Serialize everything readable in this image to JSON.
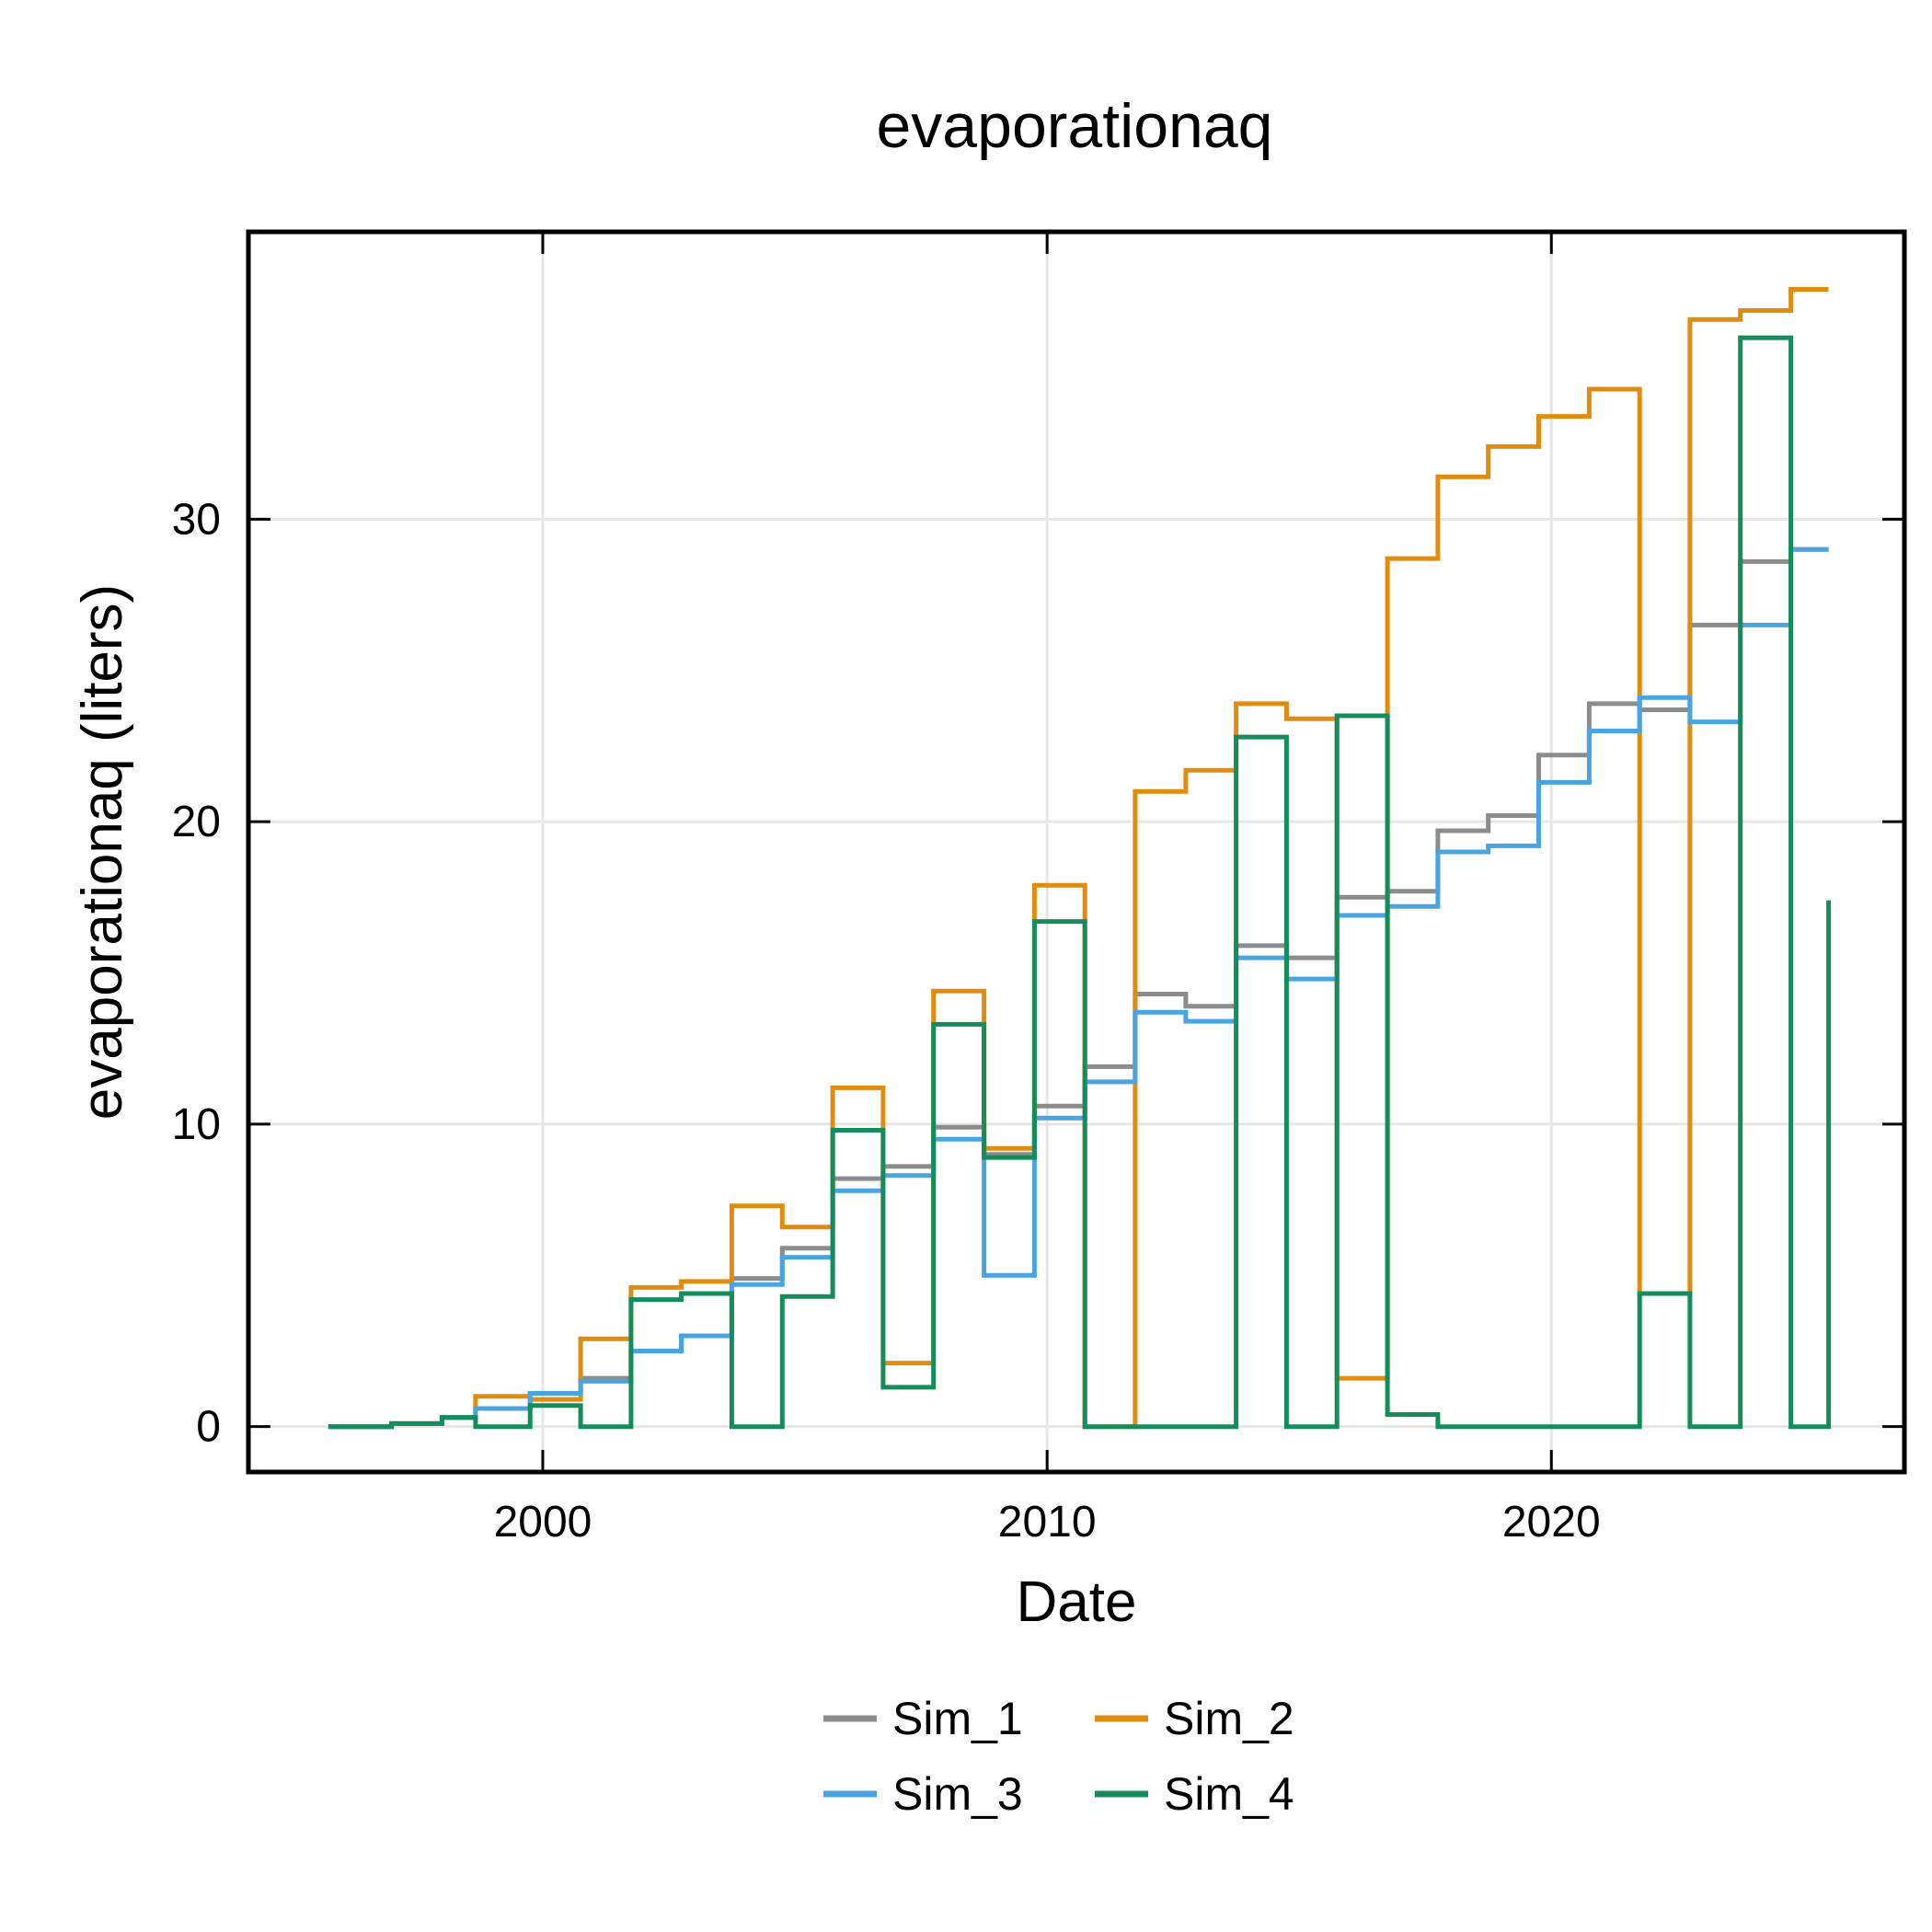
{
  "chart_data": {
    "type": "line",
    "title": "evaporationaq",
    "xlabel": "Date",
    "ylabel": "evaporationaq (liters)",
    "xlim": [
      "1994-03-01",
      "2027-01-01"
    ],
    "ylim": [
      -1.5,
      39.5
    ],
    "x_ticks": [
      "2000-01-01",
      "2010-01-01",
      "2020-01-01"
    ],
    "x_tick_labels": [
      "2000",
      "2010",
      "2020"
    ],
    "y_ticks": [
      0,
      10,
      20,
      30
    ],
    "y_tick_labels": [
      "0",
      "10",
      "20",
      "30"
    ],
    "grid": true,
    "legend_position": "bottom",
    "series": [
      {
        "name": "Sim_1",
        "color": "#8c8c8c",
        "points": [
          [
            "1995-10-01",
            0
          ],
          [
            "1997-01-01",
            0.1
          ],
          [
            "1998-01-01",
            0.3
          ],
          [
            "1998-09-01",
            0.6
          ],
          [
            "1999-10-01",
            1.1
          ],
          [
            "2000-10-01",
            1.6
          ],
          [
            "2001-10-01",
            2.5
          ],
          [
            "2002-10-01",
            3.0
          ],
          [
            "2003-10-01",
            4.9
          ],
          [
            "2004-10-01",
            5.9
          ],
          [
            "2005-10-01",
            8.2
          ],
          [
            "2006-10-01",
            8.6
          ],
          [
            "2007-10-01",
            9.9
          ],
          [
            "2008-10-01",
            9.0
          ],
          [
            "2009-10-01",
            10.6
          ],
          [
            "2010-10-01",
            11.9
          ],
          [
            "2011-10-01",
            14.3
          ],
          [
            "2012-10-01",
            13.9
          ],
          [
            "2013-10-01",
            15.9
          ],
          [
            "2014-10-01",
            15.5
          ],
          [
            "2015-10-01",
            17.5
          ],
          [
            "2016-10-01",
            17.7
          ],
          [
            "2017-10-01",
            19.7
          ],
          [
            "2018-10-01",
            20.2
          ],
          [
            "2019-10-01",
            22.2
          ],
          [
            "2020-10-01",
            23.9
          ],
          [
            "2021-10-01",
            23.7
          ],
          [
            "2022-10-01",
            26.5
          ],
          [
            "2023-10-01",
            28.6
          ],
          [
            "2024-10-01",
            29.0
          ],
          [
            "2025-07-01",
            29.0
          ]
        ]
      },
      {
        "name": "Sim_2",
        "color": "#e08c0e",
        "points": [
          [
            "1995-10-01",
            0
          ],
          [
            "1997-01-01",
            0.1
          ],
          [
            "1998-01-01",
            0.3
          ],
          [
            "1998-09-01",
            1.0
          ],
          [
            "1999-10-01",
            0.9
          ],
          [
            "2000-10-01",
            2.9
          ],
          [
            "2001-10-01",
            4.6
          ],
          [
            "2002-10-01",
            4.8
          ],
          [
            "2003-10-01",
            7.3
          ],
          [
            "2004-10-01",
            6.6
          ],
          [
            "2005-10-01",
            11.2
          ],
          [
            "2006-10-01",
            2.1
          ],
          [
            "2007-10-01",
            14.4
          ],
          [
            "2008-10-01",
            9.2
          ],
          [
            "2009-10-01",
            17.9
          ],
          [
            "2010-10-01",
            0
          ],
          [
            "2011-10-01",
            21.0
          ],
          [
            "2012-10-01",
            21.7
          ],
          [
            "2013-10-01",
            23.9
          ],
          [
            "2014-10-01",
            23.4
          ],
          [
            "2015-10-01",
            1.6
          ],
          [
            "2016-10-01",
            28.7
          ],
          [
            "2017-10-01",
            31.4
          ],
          [
            "2018-10-01",
            32.4
          ],
          [
            "2019-10-01",
            33.4
          ],
          [
            "2020-10-01",
            34.3
          ],
          [
            "2021-10-01",
            4.4
          ],
          [
            "2022-10-01",
            36.6
          ],
          [
            "2023-10-01",
            36.9
          ],
          [
            "2024-10-01",
            37.6
          ],
          [
            "2025-07-01",
            37.6
          ]
        ]
      },
      {
        "name": "Sim_3",
        "color": "#4aa4e0",
        "points": [
          [
            "1995-10-01",
            0
          ],
          [
            "1997-01-01",
            0.1
          ],
          [
            "1998-01-01",
            0.3
          ],
          [
            "1998-09-01",
            0.6
          ],
          [
            "1999-10-01",
            1.1
          ],
          [
            "2000-10-01",
            1.5
          ],
          [
            "2001-10-01",
            2.5
          ],
          [
            "2002-10-01",
            3.0
          ],
          [
            "2003-10-01",
            4.7
          ],
          [
            "2004-10-01",
            5.6
          ],
          [
            "2005-10-01",
            7.8
          ],
          [
            "2006-10-01",
            8.3
          ],
          [
            "2007-10-01",
            9.5
          ],
          [
            "2008-10-01",
            5.0
          ],
          [
            "2009-10-01",
            10.2
          ],
          [
            "2010-10-01",
            11.4
          ],
          [
            "2011-10-01",
            13.7
          ],
          [
            "2012-10-01",
            13.4
          ],
          [
            "2013-10-01",
            15.5
          ],
          [
            "2014-10-01",
            14.8
          ],
          [
            "2015-10-01",
            16.9
          ],
          [
            "2016-10-01",
            17.2
          ],
          [
            "2017-10-01",
            19.0
          ],
          [
            "2018-10-01",
            19.2
          ],
          [
            "2019-10-01",
            21.3
          ],
          [
            "2020-10-01",
            23.0
          ],
          [
            "2021-10-01",
            24.1
          ],
          [
            "2022-10-01",
            23.3
          ],
          [
            "2023-10-01",
            26.5
          ],
          [
            "2024-10-01",
            29.0
          ],
          [
            "2025-07-01",
            29.0
          ]
        ]
      },
      {
        "name": "Sim_4",
        "color": "#148c5c",
        "points": [
          [
            "1995-10-01",
            0
          ],
          [
            "1997-01-01",
            0.1
          ],
          [
            "1998-01-01",
            0.3
          ],
          [
            "1998-09-01",
            0
          ],
          [
            "1999-10-01",
            0.7
          ],
          [
            "2000-10-01",
            0
          ],
          [
            "2001-10-01",
            4.2
          ],
          [
            "2002-10-01",
            4.4
          ],
          [
            "2003-10-01",
            0
          ],
          [
            "2004-10-01",
            4.3
          ],
          [
            "2005-10-01",
            9.8
          ],
          [
            "2006-10-01",
            1.3
          ],
          [
            "2007-10-01",
            13.3
          ],
          [
            "2008-10-01",
            8.9
          ],
          [
            "2009-10-01",
            16.7
          ],
          [
            "2010-10-01",
            0
          ],
          [
            "2011-10-01",
            0
          ],
          [
            "2012-10-01",
            0
          ],
          [
            "2013-10-01",
            22.8
          ],
          [
            "2014-10-01",
            0
          ],
          [
            "2015-10-01",
            23.5
          ],
          [
            "2016-10-01",
            0.4
          ],
          [
            "2017-10-01",
            0
          ],
          [
            "2018-10-01",
            0
          ],
          [
            "2019-10-01",
            0
          ],
          [
            "2020-10-01",
            0
          ],
          [
            "2021-10-01",
            4.4
          ],
          [
            "2022-10-01",
            0
          ],
          [
            "2023-10-01",
            36.0
          ],
          [
            "2024-10-01",
            0
          ],
          [
            "2025-07-01",
            17.4
          ]
        ]
      }
    ]
  }
}
